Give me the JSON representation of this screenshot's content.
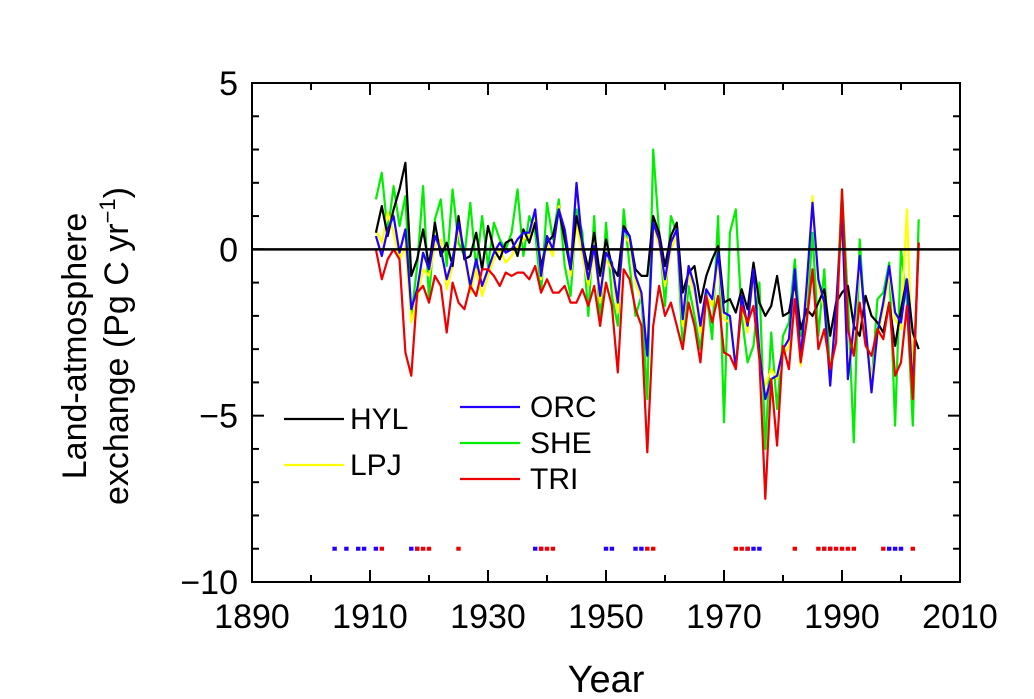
{
  "chart_data": {
    "type": "line",
    "xlabel": "Year",
    "ylabel_line1": "Land-atmosphere",
    "ylabel_line2": "exchange (Pg C yr",
    "ylabel_sup": "−1",
    "ylabel_close": ")",
    "xlim": [
      1890,
      2010
    ],
    "ylim": [
      -10,
      5
    ],
    "xticks": [
      1890,
      1910,
      1930,
      1950,
      1970,
      1990,
      2010
    ],
    "yticks": [
      5,
      0,
      -5,
      -10
    ],
    "ytick_labels": [
      "5",
      "0",
      "−5",
      "−10"
    ],
    "zero_line": true,
    "grid": false,
    "legend_col1": [
      "HYL",
      "LPJ"
    ],
    "legend_col2": [
      "ORC",
      "SHE",
      "TRI"
    ],
    "colors": {
      "HYL": "#000000",
      "LPJ": "#ffff00",
      "ORC": "#2200ff",
      "SHE": "#00ee00",
      "TRI": "#ee0000"
    },
    "start_year": 1911,
    "series": [
      {
        "name": "HYL",
        "values": [
          0.5,
          1.3,
          0.4,
          1.2,
          1.8,
          2.6,
          -0.8,
          -0.3,
          0.6,
          -0.5,
          0.8,
          -0.2,
          0.2,
          -0.5,
          1.0,
          -0.3,
          -0.2,
          0.5,
          -0.6,
          0.7,
          0.0,
          -0.3,
          0.2,
          0.3,
          -0.2,
          0.6,
          0.2,
          0.8,
          -0.5,
          0.2,
          0.4,
          1.2,
          0.3,
          -0.6,
          1.0,
          0.2,
          -0.6,
          0.5,
          -0.8,
          0.3,
          -0.5,
          -0.8,
          0.7,
          0.4,
          -0.6,
          -0.8,
          -0.8,
          1.0,
          0.5,
          -0.5,
          0.4,
          0.8,
          -1.3,
          -0.7,
          -0.5,
          -1.6,
          -0.8,
          -0.3,
          0.1,
          -1.6,
          -1.5,
          -1.9,
          -1.2,
          -1.8,
          -0.4,
          -1.6,
          -2.0,
          -1.7,
          -0.8,
          -2.0,
          -1.9,
          -1.0,
          -2.4,
          -1.8,
          -2.0,
          -1.6,
          -1.2,
          -2.6,
          -1.6,
          -1.3,
          -1.1,
          -2.3,
          -2.6,
          -1.4,
          -2.0,
          -2.2,
          -2.5,
          -1.6,
          -2.9,
          -1.8,
          -0.9,
          -2.5,
          -3.0
        ]
      },
      {
        "name": "LPJ",
        "values": [
          0.6,
          0.2,
          1.1,
          0.5,
          -0.3,
          0.1,
          -2.2,
          -1.5,
          -0.6,
          -0.8,
          0.1,
          0.3,
          -1.2,
          -0.5,
          0.6,
          -0.2,
          -1.3,
          -0.6,
          -1.4,
          -0.8,
          -0.3,
          0.0,
          -0.4,
          -0.2,
          0.1,
          0.3,
          0.4,
          1.0,
          -0.9,
          0.2,
          -0.2,
          1.3,
          0.5,
          -0.8,
          0.8,
          -0.2,
          -1.1,
          -0.1,
          -1.6,
          -0.3,
          -0.6,
          -1.9,
          0.4,
          0.2,
          -1.0,
          -1.5,
          -3.0,
          0.7,
          0.1,
          -1.1,
          0.0,
          0.4,
          -2.3,
          -0.7,
          -1.3,
          -2.5,
          -1.4,
          -1.7,
          -0.3,
          -2.1,
          -2.2,
          -3.4,
          -1.6,
          -2.5,
          -0.8,
          -3.3,
          -4.1,
          -3.6,
          -3.9,
          -3.2,
          -2.9,
          -0.8,
          -3.5,
          -1.3,
          1.6,
          -1.1,
          -1.8,
          -3.9,
          -1.9,
          0.9,
          -3.6,
          -2.5,
          -0.4,
          -2.5,
          -3.9,
          -2.7,
          -1.8,
          -0.7,
          -2.1,
          -2.4,
          1.2,
          -3.7,
          0.0
        ]
      },
      {
        "name": "ORC",
        "values": [
          0.4,
          -0.2,
          0.6,
          1.0,
          -0.1,
          0.6,
          -1.8,
          -1.2,
          -0.1,
          -0.6,
          0.4,
          0.0,
          -0.9,
          -0.3,
          0.8,
          -0.1,
          -1.1,
          -0.3,
          -1.1,
          -0.6,
          -0.1,
          0.2,
          -0.1,
          0.0,
          0.3,
          0.5,
          0.5,
          1.2,
          -0.8,
          0.4,
          0.0,
          1.2,
          0.6,
          -0.6,
          2.0,
          0.1,
          -0.9,
          0.1,
          -1.4,
          -0.1,
          -0.4,
          -1.6,
          0.6,
          0.4,
          -0.8,
          -1.3,
          -3.2,
          0.8,
          0.3,
          -0.9,
          0.2,
          0.6,
          -2.1,
          -0.5,
          -1.1,
          -2.3,
          -1.2,
          -1.5,
          -0.1,
          -1.9,
          -2.0,
          -3.6,
          -1.4,
          -2.3,
          -0.6,
          -3.1,
          -4.5,
          -3.9,
          -3.8,
          -3.0,
          -2.7,
          -0.6,
          -3.3,
          -1.1,
          1.4,
          -0.9,
          -1.6,
          -4.1,
          -1.7,
          1.1,
          -3.9,
          -2.3,
          -0.2,
          -2.3,
          -4.3,
          -2.5,
          -1.6,
          -0.5,
          -1.9,
          -2.2,
          -0.9,
          -4.3,
          0.2
        ]
      },
      {
        "name": "SHE",
        "values": [
          1.5,
          2.3,
          0.5,
          1.9,
          0.7,
          1.6,
          -2.0,
          -0.5,
          1.9,
          -1.5,
          0.9,
          1.5,
          -0.5,
          1.8,
          0.2,
          -0.2,
          1.4,
          -0.6,
          1.0,
          -0.5,
          0.8,
          0.3,
          0.0,
          0.5,
          1.8,
          -0.2,
          1.0,
          0.5,
          -1.3,
          1.4,
          0.3,
          1.5,
          -0.5,
          -1.4,
          1.2,
          0.5,
          -2.0,
          1.0,
          -2.3,
          0.8,
          -1.4,
          -2.3,
          1.2,
          -0.5,
          -2.0,
          -1.4,
          -4.5,
          3.0,
          0.5,
          -1.7,
          1.0,
          0.5,
          -3.0,
          -1.1,
          -2.0,
          -3.0,
          -1.3,
          -2.7,
          1.0,
          -5.2,
          0.5,
          1.2,
          -2.0,
          -3.4,
          -2.9,
          -1.0,
          -6.0,
          -2.5,
          -4.8,
          -2.6,
          -2.2,
          -0.3,
          -2.6,
          -2.1,
          0.5,
          -2.6,
          -0.6,
          -3.8,
          -2.0,
          1.8,
          -1.5,
          -5.8,
          0.3,
          -2.5,
          -4.1,
          -1.5,
          -1.3,
          -0.4,
          -5.3,
          0.0,
          -1.6,
          -5.3,
          0.9
        ]
      },
      {
        "name": "TRI",
        "values": [
          0.0,
          -0.9,
          -0.3,
          0.0,
          -0.3,
          -3.1,
          -3.8,
          -1.3,
          -1.1,
          -1.6,
          -0.8,
          -1.1,
          -2.5,
          -1.0,
          -1.6,
          -1.8,
          -1.1,
          -1.4,
          -0.6,
          -0.6,
          -0.8,
          -1.1,
          -0.7,
          -0.8,
          -0.7,
          -0.7,
          -0.9,
          -0.5,
          -1.3,
          -0.9,
          -1.3,
          -1.3,
          -1.1,
          -1.6,
          -1.6,
          -1.2,
          -1.7,
          -1.1,
          -2.3,
          -1.0,
          -1.7,
          -3.7,
          -0.6,
          -0.9,
          -1.8,
          -2.3,
          -6.1,
          -2.3,
          -1.1,
          -2.0,
          -1.6,
          -2.3,
          -3.0,
          -1.6,
          -2.3,
          -3.4,
          -1.4,
          -2.2,
          -1.4,
          -3.1,
          -3.2,
          -3.6,
          -1.7,
          -2.2,
          -1.7,
          -3.3,
          -7.5,
          -3.9,
          -5.9,
          -2.9,
          -3.6,
          -1.5,
          -3.4,
          -2.2,
          -0.6,
          -3.0,
          -2.4,
          -3.6,
          -2.8,
          1.8,
          -2.4,
          -3.2,
          -1.6,
          -2.9,
          -3.2,
          -2.4,
          -2.7,
          -1.6,
          -3.8,
          -3.4,
          -1.7,
          -4.5,
          0.2
        ]
      }
    ],
    "marker_row": {
      "y": -9,
      "blue_years": [
        1904,
        1906,
        1908,
        1909,
        1911,
        1917,
        1918,
        1938,
        1939,
        1950,
        1951,
        1955,
        1956,
        1974,
        1975,
        1976,
        1987,
        1988,
        1998,
        1999,
        2000
      ],
      "red_years": [
        1912,
        1918,
        1919,
        1920,
        1925,
        1939,
        1940,
        1941,
        1957,
        1958,
        1972,
        1973,
        1974,
        1982,
        1986,
        1987,
        1988,
        1989,
        1990,
        1991,
        1992,
        1997,
        2002
      ]
    }
  }
}
